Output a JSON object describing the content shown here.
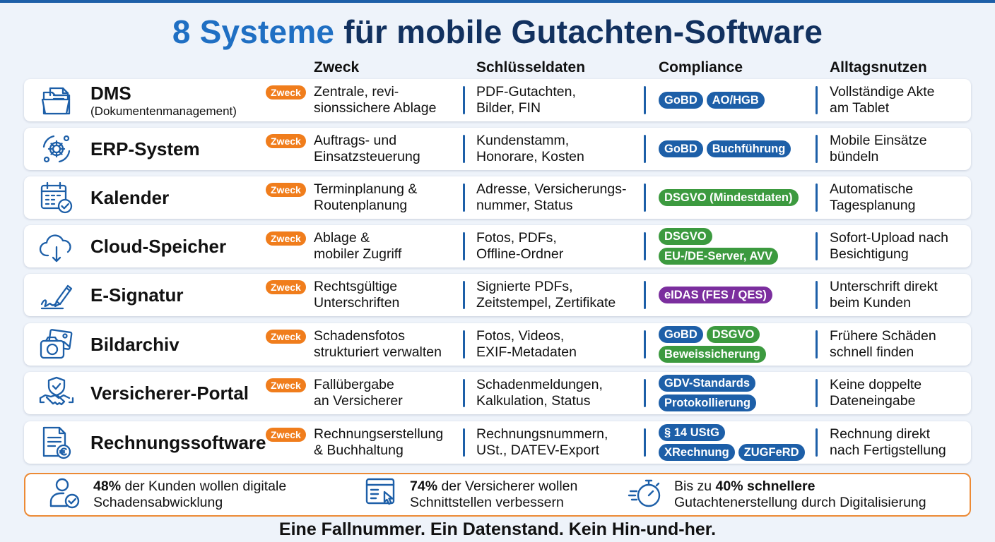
{
  "title_part1": "8 Systeme",
  "title_part2": " für mobile Gutachten-Software",
  "headers": {
    "zweck": "Zweck",
    "daten": "Schlüsseldaten",
    "compliance": "Compliance",
    "nutzen": "Alltagsnutzen"
  },
  "badge_label": "Zweck",
  "rows": [
    {
      "icon": "folder-document-icon",
      "name": "DMS",
      "sub": "(Dokumentenmanagement)",
      "zweck": "Zentrale, revi-\nsionssichere Ablage",
      "daten": "PDF-Gutachten,\nBilder, FIN",
      "compliance": [
        [
          {
            "t": "GoBD",
            "c": "blue"
          },
          {
            "t": "AO/HGB",
            "c": "blue"
          }
        ]
      ],
      "nutzen": "Vollständige Akte\nam Tablet"
    },
    {
      "icon": "gear-cycle-icon",
      "name": "ERP-System",
      "sub": "",
      "zweck": "Auftrags- und\nEinsatzsteuerung",
      "daten": "Kundenstamm,\nHonorare, Kosten",
      "compliance": [
        [
          {
            "t": "GoBD",
            "c": "blue"
          },
          {
            "t": "Buchführung",
            "c": "blue"
          }
        ]
      ],
      "nutzen": "Mobile Einsätze\nbündeln"
    },
    {
      "icon": "calendar-check-icon",
      "name": "Kalender",
      "sub": "",
      "zweck": "Terminplanung &\nRoutenplanung",
      "daten": "Adresse, Versicherungs-\nnummer, Status",
      "compliance": [
        [
          {
            "t": "DSGVO (Mindestdaten)",
            "c": "green"
          }
        ]
      ],
      "nutzen": "Automatische\nTagesplanung"
    },
    {
      "icon": "cloud-upload-icon",
      "name": "Cloud-Speicher",
      "sub": "",
      "zweck": "Ablage &\nmobiler Zugriff",
      "daten": "Fotos, PDFs,\nOffline-Ordner",
      "compliance": [
        [
          {
            "t": "DSGVO",
            "c": "green"
          }
        ],
        [
          {
            "t": "EU-/DE-Server, AVV",
            "c": "green"
          }
        ]
      ],
      "nutzen": "Sofort-Upload nach\nBesichtigung"
    },
    {
      "icon": "signature-pen-icon",
      "name": "E-Signatur",
      "sub": "",
      "zweck": "Rechtsgültige\nUnterschriften",
      "daten": "Signierte PDFs,\nZeitstempel, Zertifikate",
      "compliance": [
        [
          {
            "t": "eIDAS (FES / QES)",
            "c": "purple"
          }
        ]
      ],
      "nutzen": "Unterschrift direkt\nbeim Kunden"
    },
    {
      "icon": "camera-photo-icon",
      "name": "Bildarchiv",
      "sub": "",
      "zweck": "Schadensfotos\nstrukturiert verwalten",
      "daten": "Fotos, Videos,\nEXIF-Metadaten",
      "compliance": [
        [
          {
            "t": "GoBD",
            "c": "blue"
          },
          {
            "t": "DSGVO",
            "c": "green"
          }
        ],
        [
          {
            "t": "Beweissicherung",
            "c": "green"
          }
        ]
      ],
      "nutzen": "Frühere Schäden\nschnell finden"
    },
    {
      "icon": "handshake-shield-icon",
      "name": "Versicherer-Portal",
      "sub": "",
      "zweck": "Fallübergabe\nan Versicherer",
      "daten": "Schadenmeldungen,\nKalkulation, Status",
      "compliance": [
        [
          {
            "t": "GDV-Standards",
            "c": "blue"
          }
        ],
        [
          {
            "t": "Protokollierung",
            "c": "blue"
          }
        ]
      ],
      "nutzen": "Keine doppelte\nDateneingabe"
    },
    {
      "icon": "invoice-euro-icon",
      "name": "Rechnungssoftware",
      "sub": "",
      "zweck": "Rechnungserstellung\n& Buchhaltung",
      "daten": "Rechnungsnummern,\nUSt., DATEV-Export",
      "compliance": [
        [
          {
            "t": "§ 14 UStG",
            "c": "blue"
          }
        ],
        [
          {
            "t": "XRechnung",
            "c": "blue"
          },
          {
            "t": "ZUGFeRD",
            "c": "blue"
          }
        ]
      ],
      "nutzen": "Rechnung direkt\nnach Fertigstellung"
    }
  ],
  "stats": [
    {
      "icon": "user-check-icon",
      "strong": "48%",
      "rest1": " der Kunden wollen digitale",
      "line2": "Schadensabwicklung"
    },
    {
      "icon": "interface-click-icon",
      "strong": "74%",
      "rest1": " der Versicherer wollen",
      "line2": "Schnittstellen verbessern"
    },
    {
      "icon": "stopwatch-icon",
      "pre": "Bis zu ",
      "strong": "40% schnellere",
      "line2": "Gutachtenerstellung durch Digitalisierung"
    }
  ],
  "footer": "Eine Fallnummer. Ein Datenstand. Kein Hin-und-her.",
  "colors": {
    "brand_blue": "#1d5fa8",
    "title_dark": "#12315f",
    "orange": "#f07d1c",
    "green": "#3c9a3f",
    "purple": "#7b2e9e"
  }
}
